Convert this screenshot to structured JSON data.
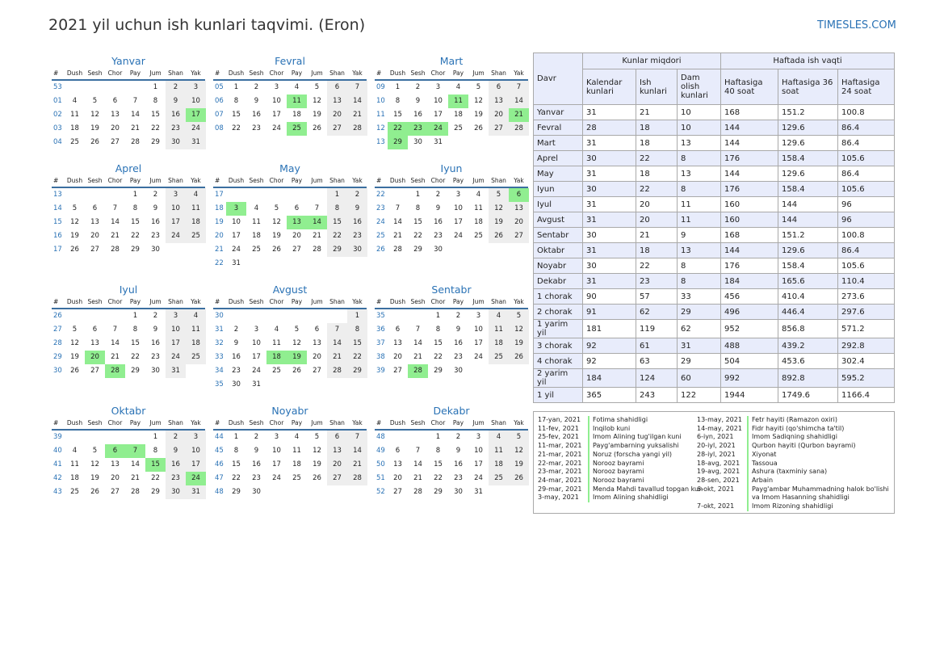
{
  "title": "2021 yil uchun ish kunlari taqvimi. (Eron)",
  "site": "TIMESLES.COM",
  "colors": {
    "holiday": "#90ee90",
    "weekend": "#eeeeee",
    "accent": "#2a72b5"
  },
  "weekdays": [
    "Dush",
    "Sesh",
    "Chor",
    "Pay",
    "Jum",
    "Shan",
    "Yak"
  ],
  "week_header": "#",
  "months": [
    {
      "name": "Yanvar",
      "weeks": [
        [
          "53",
          "",
          "",
          "",
          "",
          "1",
          "2",
          "3"
        ],
        [
          "01",
          "4",
          "5",
          "6",
          "7",
          "8",
          "9",
          "10"
        ],
        [
          "02",
          "11",
          "12",
          "13",
          "14",
          "15",
          "16",
          "17"
        ],
        [
          "03",
          "18",
          "19",
          "20",
          "21",
          "22",
          "23",
          "24"
        ],
        [
          "04",
          "25",
          "26",
          "27",
          "28",
          "29",
          "30",
          "31"
        ]
      ],
      "holidays": [
        "17"
      ]
    },
    {
      "name": "Fevral",
      "weeks": [
        [
          "05",
          "1",
          "2",
          "3",
          "4",
          "5",
          "6",
          "7"
        ],
        [
          "06",
          "8",
          "9",
          "10",
          "11",
          "12",
          "13",
          "14"
        ],
        [
          "07",
          "15",
          "16",
          "17",
          "18",
          "19",
          "20",
          "21"
        ],
        [
          "08",
          "22",
          "23",
          "24",
          "25",
          "26",
          "27",
          "28"
        ]
      ],
      "holidays": [
        "11",
        "25"
      ]
    },
    {
      "name": "Mart",
      "weeks": [
        [
          "09",
          "1",
          "2",
          "3",
          "4",
          "5",
          "6",
          "7"
        ],
        [
          "10",
          "8",
          "9",
          "10",
          "11",
          "12",
          "13",
          "14"
        ],
        [
          "11",
          "15",
          "16",
          "17",
          "18",
          "19",
          "20",
          "21"
        ],
        [
          "12",
          "22",
          "23",
          "24",
          "25",
          "26",
          "27",
          "28"
        ],
        [
          "13",
          "29",
          "30",
          "31",
          "",
          "",
          "",
          ""
        ]
      ],
      "holidays": [
        "11",
        "21",
        "22",
        "23",
        "24",
        "29"
      ]
    },
    {
      "name": "Aprel",
      "weeks": [
        [
          "13",
          "",
          "",
          "",
          "1",
          "2",
          "3",
          "4"
        ],
        [
          "14",
          "5",
          "6",
          "7",
          "8",
          "9",
          "10",
          "11"
        ],
        [
          "15",
          "12",
          "13",
          "14",
          "15",
          "16",
          "17",
          "18"
        ],
        [
          "16",
          "19",
          "20",
          "21",
          "22",
          "23",
          "24",
          "25"
        ],
        [
          "17",
          "26",
          "27",
          "28",
          "29",
          "30",
          "",
          ""
        ]
      ],
      "holidays": []
    },
    {
      "name": "May",
      "weeks": [
        [
          "17",
          "",
          "",
          "",
          "",
          "",
          "1",
          "2"
        ],
        [
          "18",
          "3",
          "4",
          "5",
          "6",
          "7",
          "8",
          "9"
        ],
        [
          "19",
          "10",
          "11",
          "12",
          "13",
          "14",
          "15",
          "16"
        ],
        [
          "20",
          "17",
          "18",
          "19",
          "20",
          "21",
          "22",
          "23"
        ],
        [
          "21",
          "24",
          "25",
          "26",
          "27",
          "28",
          "29",
          "30"
        ],
        [
          "22",
          "31",
          "",
          "",
          "",
          "",
          "",
          ""
        ]
      ],
      "holidays": [
        "3",
        "13",
        "14"
      ]
    },
    {
      "name": "Iyun",
      "weeks": [
        [
          "22",
          "",
          "1",
          "2",
          "3",
          "4",
          "5",
          "6"
        ],
        [
          "23",
          "7",
          "8",
          "9",
          "10",
          "11",
          "12",
          "13"
        ],
        [
          "24",
          "14",
          "15",
          "16",
          "17",
          "18",
          "19",
          "20"
        ],
        [
          "25",
          "21",
          "22",
          "23",
          "24",
          "25",
          "26",
          "27"
        ],
        [
          "26",
          "28",
          "29",
          "30",
          "",
          "",
          "",
          ""
        ]
      ],
      "holidays": [
        "6"
      ]
    },
    {
      "name": "Iyul",
      "weeks": [
        [
          "26",
          "",
          "",
          "",
          "1",
          "2",
          "3",
          "4"
        ],
        [
          "27",
          "5",
          "6",
          "7",
          "8",
          "9",
          "10",
          "11"
        ],
        [
          "28",
          "12",
          "13",
          "14",
          "15",
          "16",
          "17",
          "18"
        ],
        [
          "29",
          "19",
          "20",
          "21",
          "22",
          "23",
          "24",
          "25"
        ],
        [
          "30",
          "26",
          "27",
          "28",
          "29",
          "30",
          "31",
          ""
        ]
      ],
      "holidays": [
        "20",
        "28"
      ]
    },
    {
      "name": "Avgust",
      "weeks": [
        [
          "30",
          "",
          "",
          "",
          "",
          "",
          "",
          "1"
        ],
        [
          "31",
          "2",
          "3",
          "4",
          "5",
          "6",
          "7",
          "8"
        ],
        [
          "32",
          "9",
          "10",
          "11",
          "12",
          "13",
          "14",
          "15"
        ],
        [
          "33",
          "16",
          "17",
          "18",
          "19",
          "20",
          "21",
          "22"
        ],
        [
          "34",
          "23",
          "24",
          "25",
          "26",
          "27",
          "28",
          "29"
        ],
        [
          "35",
          "30",
          "31",
          "",
          "",
          "",
          "",
          ""
        ]
      ],
      "holidays": [
        "18",
        "19"
      ]
    },
    {
      "name": "Sentabr",
      "weeks": [
        [
          "35",
          "",
          "",
          "1",
          "2",
          "3",
          "4",
          "5"
        ],
        [
          "36",
          "6",
          "7",
          "8",
          "9",
          "10",
          "11",
          "12"
        ],
        [
          "37",
          "13",
          "14",
          "15",
          "16",
          "17",
          "18",
          "19"
        ],
        [
          "38",
          "20",
          "21",
          "22",
          "23",
          "24",
          "25",
          "26"
        ],
        [
          "39",
          "27",
          "28",
          "29",
          "30",
          "",
          "",
          ""
        ]
      ],
      "holidays": [
        "28"
      ]
    },
    {
      "name": "Oktabr",
      "weeks": [
        [
          "39",
          "",
          "",
          "",
          "",
          "1",
          "2",
          "3"
        ],
        [
          "40",
          "4",
          "5",
          "6",
          "7",
          "8",
          "9",
          "10"
        ],
        [
          "41",
          "11",
          "12",
          "13",
          "14",
          "15",
          "16",
          "17"
        ],
        [
          "42",
          "18",
          "19",
          "20",
          "21",
          "22",
          "23",
          "24"
        ],
        [
          "43",
          "25",
          "26",
          "27",
          "28",
          "29",
          "30",
          "31"
        ]
      ],
      "holidays": [
        "6",
        "7",
        "15",
        "24"
      ]
    },
    {
      "name": "Noyabr",
      "weeks": [
        [
          "44",
          "1",
          "2",
          "3",
          "4",
          "5",
          "6",
          "7"
        ],
        [
          "45",
          "8",
          "9",
          "10",
          "11",
          "12",
          "13",
          "14"
        ],
        [
          "46",
          "15",
          "16",
          "17",
          "18",
          "19",
          "20",
          "21"
        ],
        [
          "47",
          "22",
          "23",
          "24",
          "25",
          "26",
          "27",
          "28"
        ],
        [
          "48",
          "29",
          "30",
          "",
          "",
          "",
          "",
          ""
        ]
      ],
      "holidays": []
    },
    {
      "name": "Dekabr",
      "weeks": [
        [
          "48",
          "",
          "",
          "1",
          "2",
          "3",
          "4",
          "5"
        ],
        [
          "49",
          "6",
          "7",
          "8",
          "9",
          "10",
          "11",
          "12"
        ],
        [
          "50",
          "13",
          "14",
          "15",
          "16",
          "17",
          "18",
          "19"
        ],
        [
          "51",
          "20",
          "21",
          "22",
          "23",
          "24",
          "25",
          "26"
        ],
        [
          "52",
          "27",
          "28",
          "29",
          "30",
          "31",
          "",
          ""
        ]
      ],
      "holidays": []
    }
  ],
  "summary": {
    "h_period": "Davr",
    "h_days": "Kunlar miqdori",
    "h_hours": "Haftada ish vaqti",
    "h_calendar": "Kalendar kunlari",
    "h_work": "Ish kunlari",
    "h_rest": "Dam olish kunlari",
    "h_40": "Haftasiga 40 soat",
    "h_36": "Haftasiga 36 soat",
    "h_24": "Haftasiga 24 soat",
    "rows": [
      [
        "Yanvar",
        "31",
        "21",
        "10",
        "168",
        "151.2",
        "100.8"
      ],
      [
        "Fevral",
        "28",
        "18",
        "10",
        "144",
        "129.6",
        "86.4"
      ],
      [
        "Mart",
        "31",
        "18",
        "13",
        "144",
        "129.6",
        "86.4"
      ],
      [
        "Aprel",
        "30",
        "22",
        "8",
        "176",
        "158.4",
        "105.6"
      ],
      [
        "May",
        "31",
        "18",
        "13",
        "144",
        "129.6",
        "86.4"
      ],
      [
        "Iyun",
        "30",
        "22",
        "8",
        "176",
        "158.4",
        "105.6"
      ],
      [
        "Iyul",
        "31",
        "20",
        "11",
        "160",
        "144",
        "96"
      ],
      [
        "Avgust",
        "31",
        "20",
        "11",
        "160",
        "144",
        "96"
      ],
      [
        "Sentabr",
        "30",
        "21",
        "9",
        "168",
        "151.2",
        "100.8"
      ],
      [
        "Oktabr",
        "31",
        "18",
        "13",
        "144",
        "129.6",
        "86.4"
      ],
      [
        "Noyabr",
        "30",
        "22",
        "8",
        "176",
        "158.4",
        "105.6"
      ],
      [
        "Dekabr",
        "31",
        "23",
        "8",
        "184",
        "165.6",
        "110.4"
      ],
      [
        "1 chorak",
        "90",
        "57",
        "33",
        "456",
        "410.4",
        "273.6"
      ],
      [
        "2 chorak",
        "91",
        "62",
        "29",
        "496",
        "446.4",
        "297.6"
      ],
      [
        "1 yarim yil",
        "181",
        "119",
        "62",
        "952",
        "856.8",
        "571.2"
      ],
      [
        "3 chorak",
        "92",
        "61",
        "31",
        "488",
        "439.2",
        "292.8"
      ],
      [
        "4 chorak",
        "92",
        "63",
        "29",
        "504",
        "453.6",
        "302.4"
      ],
      [
        "2 yarim yil",
        "184",
        "124",
        "60",
        "992",
        "892.8",
        "595.2"
      ],
      [
        "1 yil",
        "365",
        "243",
        "122",
        "1944",
        "1749.6",
        "1166.4"
      ]
    ]
  },
  "holidays_list": [
    [
      {
        "date": "17-yan, 2021",
        "name": "Fotima shahidligi"
      },
      {
        "date": "11-fev, 2021",
        "name": "Inqilob kuni"
      },
      {
        "date": "25-fev, 2021",
        "name": "Imom Alining tug'ilgan kuni"
      },
      {
        "date": "11-mar, 2021",
        "name": "Payg'ambarning yuksalishi"
      },
      {
        "date": "21-mar, 2021",
        "name": "Noruz (forscha yangi yil)"
      },
      {
        "date": "22-mar, 2021",
        "name": "Norooz bayrami"
      },
      {
        "date": "23-mar, 2021",
        "name": "Norooz bayrami"
      },
      {
        "date": "24-mar, 2021",
        "name": "Norooz bayrami"
      },
      {
        "date": "29-mar, 2021",
        "name": "Menda Mahdi tavallud topgan kun"
      },
      {
        "date": "3-may, 2021",
        "name": "Imom Alining shahidligi"
      }
    ],
    [
      {
        "date": "13-may, 2021",
        "name": "Fetr hayiti (Ramazon oxiri)"
      },
      {
        "date": "14-may, 2021",
        "name": "Fidr hayiti (qo'shimcha ta'til)"
      },
      {
        "date": "6-iyn, 2021",
        "name": "Imom Sadiqning shahidligi"
      },
      {
        "date": "20-iyl, 2021",
        "name": "Qurbon hayiti (Qurbon bayrami)"
      },
      {
        "date": "28-iyl, 2021",
        "name": "Xiyonat"
      },
      {
        "date": "18-avg, 2021",
        "name": "Tassoua"
      },
      {
        "date": "19-avg, 2021",
        "name": "Ashura (taxminiy sana)"
      },
      {
        "date": "28-sen, 2021",
        "name": "Arbain"
      },
      {
        "date": "6-okt, 2021",
        "name": "Payg'ambar Muhammadning halok bo'lishi"
      },
      {
        "date": "",
        "name": "va Imom Hasanning shahidligi"
      },
      {
        "date": "7-okt, 2021",
        "name": "Imom Rizoning shahidligi"
      }
    ]
  ]
}
